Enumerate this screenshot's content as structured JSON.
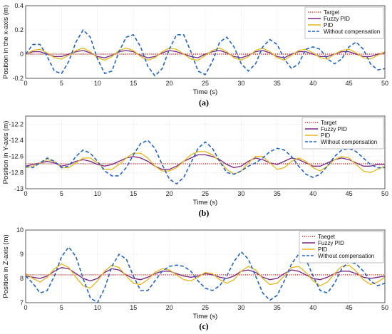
{
  "colors": {
    "target": "#d62a1f",
    "fuzzy": "#7b2382",
    "pid": "#e8b51a",
    "without": "#1f64c8",
    "grid": "#d6d6d6",
    "axis": "#333333"
  },
  "chart_data": [
    {
      "type": "line",
      "caption": "(a)",
      "xlabel": "Time (s)",
      "ylabel": "Position in the x-axis (m)",
      "xlim": [
        0,
        50
      ],
      "ylim": [
        -0.2,
        0.4
      ],
      "xticks": [
        0,
        5,
        10,
        15,
        20,
        25,
        30,
        35,
        40,
        45,
        50
      ],
      "yticks": [
        -0.2,
        0,
        0.2,
        0.4
      ],
      "ytick_labels": [
        "-0.2",
        "0",
        "0.2",
        "0.4"
      ],
      "grid": true,
      "legend_position": "top-right",
      "x": [
        0,
        1,
        2,
        3,
        4,
        5,
        6,
        7,
        8,
        9,
        10,
        11,
        12,
        13,
        14,
        15,
        16,
        17,
        18,
        19,
        20,
        21,
        22,
        23,
        24,
        25,
        26,
        27,
        28,
        29,
        30,
        31,
        32,
        33,
        34,
        35,
        36,
        37,
        38,
        39,
        40,
        41,
        42,
        43,
        44,
        45,
        46,
        47,
        48,
        49,
        50
      ],
      "series": [
        {
          "name": "Target",
          "style": "dotted",
          "color_key": "target",
          "values": [
            0,
            0,
            0,
            0,
            0,
            0,
            0,
            0,
            0,
            0,
            0,
            0,
            0,
            0,
            0,
            0,
            0,
            0,
            0,
            0,
            0,
            0,
            0,
            0,
            0,
            0,
            0,
            0,
            0,
            0,
            0,
            0,
            0,
            0,
            0,
            0,
            0,
            0,
            0,
            0,
            0,
            0,
            0,
            0,
            0,
            0,
            0,
            0,
            0,
            0,
            0
          ]
        },
        {
          "name": "Fuzzy PID",
          "style": "solid",
          "color_key": "fuzzy",
          "values": [
            0,
            0.02,
            0.02,
            0,
            -0.02,
            -0.02,
            0,
            0.02,
            0.03,
            0.01,
            -0.02,
            -0.03,
            -0.01,
            0.02,
            0.03,
            0.02,
            -0.01,
            -0.03,
            -0.02,
            0.01,
            0.03,
            0.02,
            0,
            -0.02,
            -0.03,
            0,
            0.02,
            0.03,
            0.01,
            -0.02,
            -0.03,
            -0.01,
            0.02,
            0.03,
            0.01,
            -0.02,
            -0.03,
            0,
            0.02,
            0.02,
            0,
            -0.02,
            -0.02,
            0,
            0.02,
            0.02,
            0,
            -0.02,
            -0.02,
            0,
            0.01
          ]
        },
        {
          "name": "PID",
          "style": "solid",
          "color_key": "pid",
          "values": [
            0,
            0.03,
            0.04,
            0.01,
            -0.03,
            -0.04,
            -0.01,
            0.03,
            0.05,
            0.02,
            -0.03,
            -0.05,
            -0.02,
            0.03,
            0.05,
            0.03,
            -0.02,
            -0.05,
            -0.03,
            0.02,
            0.05,
            0.04,
            0,
            -0.04,
            -0.05,
            -0.01,
            0.03,
            0.05,
            0.02,
            -0.03,
            -0.05,
            -0.02,
            0.03,
            0.05,
            0.02,
            -0.03,
            -0.05,
            -0.01,
            0.03,
            0.04,
            0.01,
            -0.03,
            -0.04,
            0,
            0.03,
            0.04,
            0.01,
            -0.03,
            -0.04,
            -0.01,
            0.02
          ]
        },
        {
          "name": "Without compensation",
          "style": "dashed",
          "color_key": "without",
          "values": [
            0,
            0.08,
            0.08,
            -0.02,
            -0.14,
            -0.16,
            -0.06,
            0.1,
            0.2,
            0.14,
            -0.04,
            -0.16,
            -0.14,
            0.02,
            0.14,
            0.16,
            0.06,
            -0.1,
            -0.18,
            -0.12,
            0.04,
            0.16,
            0.16,
            0.02,
            -0.14,
            -0.17,
            -0.06,
            0.1,
            0.14,
            0.06,
            -0.08,
            -0.14,
            -0.08,
            0.06,
            0.12,
            0.08,
            -0.04,
            -0.12,
            -0.08,
            0.04,
            0.06,
            0.04,
            -0.04,
            -0.08,
            -0.04,
            0.06,
            0.1,
            0.04,
            -0.08,
            -0.13,
            -0.12
          ]
        }
      ]
    },
    {
      "type": "line",
      "caption": "(b)",
      "xlabel": "Time (s)",
      "ylabel": "Position in Y-axis (m)",
      "xlim": [
        0,
        50
      ],
      "ylim": [
        -13,
        -12.1
      ],
      "xticks": [
        0,
        5,
        10,
        15,
        20,
        25,
        30,
        35,
        40,
        45,
        50
      ],
      "yticks": [
        -13,
        -12.8,
        -12.6,
        -12.4,
        -12.2
      ],
      "ytick_labels": [
        "-13",
        "-12.8",
        "-12.6",
        "-12.4",
        "-12.2"
      ],
      "grid": true,
      "legend_position": "top-right",
      "x": [
        0,
        1,
        2,
        3,
        4,
        5,
        6,
        7,
        8,
        9,
        10,
        11,
        12,
        13,
        14,
        15,
        16,
        17,
        18,
        19,
        20,
        21,
        22,
        23,
        24,
        25,
        26,
        27,
        28,
        29,
        30,
        31,
        32,
        33,
        34,
        35,
        36,
        37,
        38,
        39,
        40,
        41,
        42,
        43,
        44,
        45,
        46,
        47,
        48,
        49,
        50
      ],
      "series": [
        {
          "name": "Target",
          "style": "dotted",
          "color_key": "target",
          "values": [
            -12.69,
            -12.69,
            -12.69,
            -12.69,
            -12.69,
            -12.69,
            -12.69,
            -12.69,
            -12.69,
            -12.69,
            -12.69,
            -12.69,
            -12.69,
            -12.69,
            -12.69,
            -12.69,
            -12.69,
            -12.69,
            -12.69,
            -12.69,
            -12.69,
            -12.69,
            -12.69,
            -12.69,
            -12.69,
            -12.69,
            -12.69,
            -12.69,
            -12.69,
            -12.69,
            -12.69,
            -12.69,
            -12.69,
            -12.69,
            -12.69,
            -12.69,
            -12.69,
            -12.69,
            -12.69,
            -12.69,
            -12.69,
            -12.69,
            -12.69,
            -12.69,
            -12.69,
            -12.69,
            -12.69,
            -12.69,
            -12.69,
            -12.69,
            -12.69
          ]
        },
        {
          "name": "Fuzzy PID",
          "style": "solid",
          "color_key": "fuzzy",
          "values": [
            -12.72,
            -12.7,
            -12.68,
            -12.66,
            -12.68,
            -12.72,
            -12.7,
            -12.66,
            -12.64,
            -12.66,
            -12.7,
            -12.72,
            -12.7,
            -12.66,
            -12.62,
            -12.6,
            -12.62,
            -12.66,
            -12.72,
            -12.76,
            -12.76,
            -12.72,
            -12.66,
            -12.62,
            -12.58,
            -12.58,
            -12.6,
            -12.64,
            -12.7,
            -12.74,
            -12.72,
            -12.66,
            -12.62,
            -12.64,
            -12.68,
            -12.7,
            -12.66,
            -12.62,
            -12.64,
            -12.68,
            -12.72,
            -12.72,
            -12.68,
            -12.64,
            -12.62,
            -12.64,
            -12.68,
            -12.72,
            -12.72,
            -12.7,
            -12.7
          ]
        },
        {
          "name": "PID",
          "style": "solid",
          "color_key": "pid",
          "values": [
            -12.74,
            -12.72,
            -12.68,
            -12.64,
            -12.66,
            -12.74,
            -12.74,
            -12.68,
            -12.62,
            -12.62,
            -12.68,
            -12.76,
            -12.76,
            -12.7,
            -12.62,
            -12.56,
            -12.56,
            -12.62,
            -12.72,
            -12.78,
            -12.78,
            -12.74,
            -12.66,
            -12.58,
            -12.54,
            -12.54,
            -12.58,
            -12.66,
            -12.76,
            -12.82,
            -12.78,
            -12.68,
            -12.6,
            -12.6,
            -12.68,
            -12.76,
            -12.74,
            -12.66,
            -12.62,
            -12.66,
            -12.74,
            -12.78,
            -12.72,
            -12.64,
            -12.6,
            -12.62,
            -12.7,
            -12.78,
            -12.8,
            -12.76,
            -12.72
          ]
        },
        {
          "name": "Without compensation",
          "style": "dashed",
          "color_key": "without",
          "values": [
            -12.72,
            -12.74,
            -12.68,
            -12.62,
            -12.66,
            -12.74,
            -12.72,
            -12.6,
            -12.52,
            -12.56,
            -12.66,
            -12.78,
            -12.84,
            -12.84,
            -12.74,
            -12.58,
            -12.44,
            -12.4,
            -12.5,
            -12.7,
            -12.88,
            -12.94,
            -12.86,
            -12.68,
            -12.5,
            -12.42,
            -12.5,
            -12.66,
            -12.8,
            -12.82,
            -12.78,
            -12.72,
            -12.68,
            -12.62,
            -12.54,
            -12.5,
            -12.52,
            -12.6,
            -12.72,
            -12.82,
            -12.86,
            -12.82,
            -12.72,
            -12.6,
            -12.52,
            -12.5,
            -12.54,
            -12.62,
            -12.7,
            -12.74,
            -12.74
          ]
        }
      ]
    },
    {
      "type": "line",
      "caption": "(c)",
      "xlabel": "Time (s)",
      "ylabel": "Position in Z-axis (m)",
      "xlim": [
        0,
        50
      ],
      "ylim": [
        7,
        10
      ],
      "xticks": [
        0,
        5,
        10,
        15,
        20,
        25,
        30,
        35,
        40,
        45,
        50
      ],
      "yticks": [
        7,
        8,
        9,
        10
      ],
      "ytick_labels": [
        "7",
        "8",
        "9",
        "10"
      ],
      "grid": true,
      "legend_position": "top-right",
      "x": [
        0,
        1,
        2,
        3,
        4,
        5,
        6,
        7,
        8,
        9,
        10,
        11,
        12,
        13,
        14,
        15,
        16,
        17,
        18,
        19,
        20,
        21,
        22,
        23,
        24,
        25,
        26,
        27,
        28,
        29,
        30,
        31,
        32,
        33,
        34,
        35,
        36,
        37,
        38,
        39,
        40,
        41,
        42,
        43,
        44,
        45,
        46,
        47,
        48,
        49,
        50
      ],
      "series": [
        {
          "name": "Taeget",
          "style": "dotted",
          "color_key": "target",
          "values": [
            8.15,
            8.15,
            8.15,
            8.15,
            8.15,
            8.15,
            8.15,
            8.15,
            8.15,
            8.15,
            8.15,
            8.15,
            8.15,
            8.15,
            8.15,
            8.15,
            8.15,
            8.15,
            8.15,
            8.15,
            8.15,
            8.15,
            8.15,
            8.15,
            8.15,
            8.15,
            8.15,
            8.15,
            8.15,
            8.15,
            8.15,
            8.15,
            8.15,
            8.15,
            8.15,
            8.15,
            8.15,
            8.15,
            8.15,
            8.15,
            8.15,
            8.15,
            8.15,
            8.15,
            8.15,
            8.15,
            8.15,
            8.15,
            8.15,
            8.15,
            8.15
          ]
        },
        {
          "name": "Fuzzy PID",
          "style": "solid",
          "color_key": "fuzzy",
          "values": [
            8.1,
            8.05,
            8.0,
            8.1,
            8.3,
            8.45,
            8.4,
            8.2,
            8.0,
            7.9,
            8.0,
            8.25,
            8.4,
            8.35,
            8.15,
            8.0,
            7.95,
            8.05,
            8.2,
            8.3,
            8.3,
            8.2,
            8.1,
            8.05,
            8.1,
            8.2,
            8.15,
            8.05,
            8.0,
            8.1,
            8.3,
            8.35,
            8.25,
            8.05,
            7.95,
            8.0,
            8.2,
            8.35,
            8.3,
            8.15,
            8.0,
            7.95,
            8.05,
            8.2,
            8.3,
            8.3,
            8.2,
            8.05,
            8.0,
            8.05,
            8.1
          ]
        },
        {
          "name": "PID",
          "style": "solid",
          "color_key": "pid",
          "values": [
            8.2,
            8.0,
            7.85,
            8.05,
            8.4,
            8.6,
            8.45,
            8.05,
            7.7,
            7.6,
            7.9,
            8.3,
            8.55,
            8.45,
            8.1,
            7.8,
            7.75,
            7.95,
            8.25,
            8.4,
            8.35,
            8.15,
            7.95,
            7.9,
            8.05,
            8.25,
            8.2,
            7.95,
            7.8,
            7.95,
            8.3,
            8.5,
            8.35,
            8.0,
            7.75,
            7.8,
            8.1,
            8.45,
            8.5,
            8.25,
            7.9,
            7.7,
            7.85,
            8.2,
            8.5,
            8.55,
            8.3,
            7.95,
            7.75,
            7.85,
            8.05
          ]
        },
        {
          "name": "Without compensation",
          "style": "dashed",
          "color_key": "without",
          "values": [
            8.1,
            7.8,
            7.4,
            7.5,
            8.1,
            8.9,
            9.3,
            8.9,
            8.0,
            7.2,
            7.0,
            7.6,
            8.5,
            9.0,
            8.8,
            8.1,
            7.5,
            7.5,
            7.9,
            8.3,
            8.5,
            8.55,
            8.5,
            8.3,
            7.9,
            7.6,
            7.5,
            7.7,
            8.1,
            8.7,
            9.1,
            8.8,
            8.1,
            7.4,
            7.1,
            7.3,
            7.9,
            8.6,
            9.0,
            8.8,
            8.1,
            7.5,
            7.4,
            7.8,
            8.4,
            8.7,
            8.6,
            8.3,
            7.9,
            7.7,
            7.8
          ]
        }
      ]
    }
  ]
}
